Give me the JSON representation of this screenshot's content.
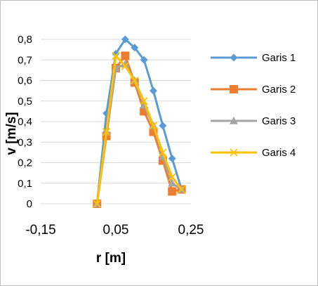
{
  "chart_data": {
    "type": "scatter",
    "title": "",
    "xlabel": "r [m]",
    "ylabel": "v [m/s]",
    "xlim": [
      -0.15,
      0.25
    ],
    "ylim": [
      0,
      0.8
    ],
    "x_ticks": [
      "-0,15",
      "0,05",
      "0,25"
    ],
    "y_ticks": [
      "0",
      "0,1",
      "0,2",
      "0,3",
      "0,4",
      "0,5",
      "0,6",
      "0,7",
      "0,8"
    ],
    "grid": "horizontal",
    "legend_position": "right",
    "series": [
      {
        "name": "Garis 1",
        "color": "#5B9BD5",
        "marker": "diamond",
        "points": [
          [
            0.0,
            0.0
          ],
          [
            0.025,
            0.44
          ],
          [
            0.05,
            0.73
          ],
          [
            0.075,
            0.8
          ],
          [
            0.1,
            0.76
          ],
          [
            0.125,
            0.7
          ],
          [
            0.15,
            0.55
          ],
          [
            0.175,
            0.38
          ],
          [
            0.2,
            0.22
          ],
          [
            0.225,
            0.07
          ]
        ]
      },
      {
        "name": "Garis 2",
        "color": "#ED7D31",
        "marker": "square",
        "points": [
          [
            0.0,
            0.0
          ],
          [
            0.025,
            0.33
          ],
          [
            0.05,
            0.66
          ],
          [
            0.075,
            0.72
          ],
          [
            0.1,
            0.59
          ],
          [
            0.125,
            0.45
          ],
          [
            0.15,
            0.35
          ],
          [
            0.175,
            0.21
          ],
          [
            0.2,
            0.06
          ],
          [
            0.225,
            0.07
          ]
        ]
      },
      {
        "name": "Garis 3",
        "color": "#A5A5A5",
        "marker": "triangle",
        "points": [
          [
            0.0,
            0.0
          ],
          [
            0.025,
            0.35
          ],
          [
            0.05,
            0.66
          ],
          [
            0.075,
            0.68
          ],
          [
            0.1,
            0.6
          ],
          [
            0.125,
            0.48
          ],
          [
            0.15,
            0.38
          ],
          [
            0.175,
            0.23
          ],
          [
            0.2,
            0.1
          ],
          [
            0.225,
            0.07
          ]
        ]
      },
      {
        "name": "Garis 4",
        "color": "#FFC000",
        "marker": "x",
        "points": [
          [
            0.0,
            0.0
          ],
          [
            0.025,
            0.35
          ],
          [
            0.05,
            0.72
          ],
          [
            0.075,
            0.67
          ],
          [
            0.1,
            0.6
          ],
          [
            0.125,
            0.5
          ],
          [
            0.15,
            0.38
          ],
          [
            0.175,
            0.25
          ],
          [
            0.2,
            0.13
          ],
          [
            0.225,
            0.07
          ]
        ]
      }
    ]
  }
}
